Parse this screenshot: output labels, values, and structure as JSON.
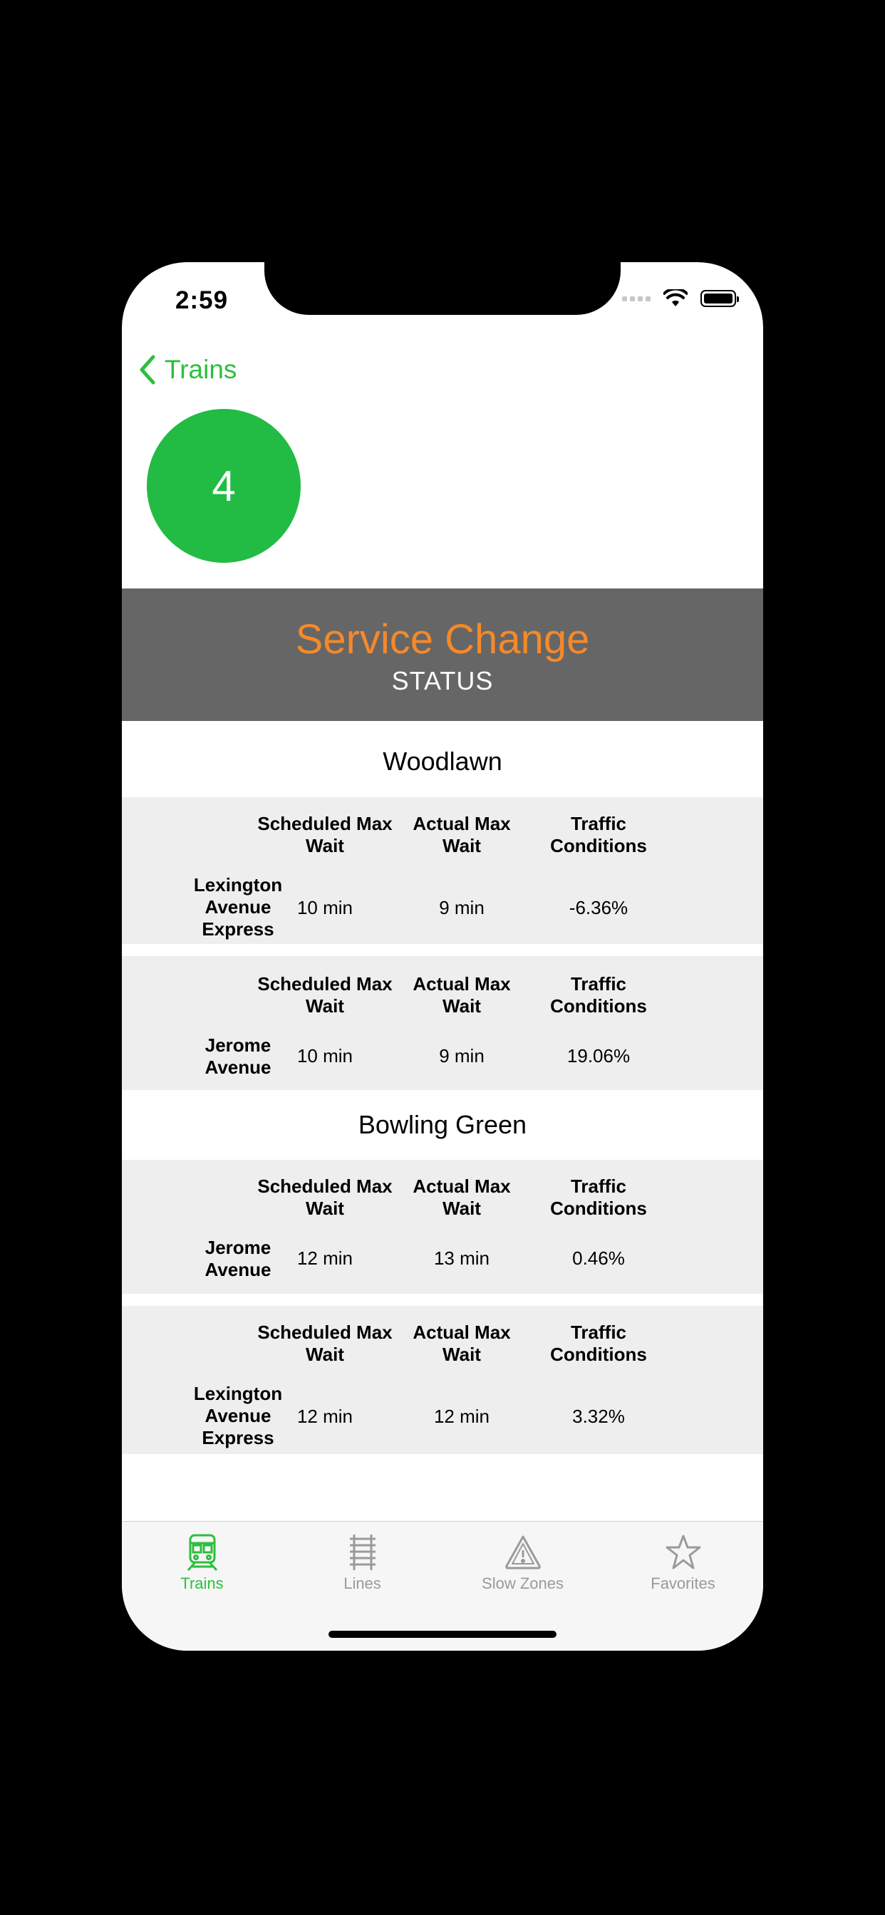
{
  "status_bar": {
    "time": "2:59"
  },
  "nav": {
    "back_label": "Trains"
  },
  "line": {
    "badge": "4",
    "badge_color": "#22bb44"
  },
  "status": {
    "title": "Service Change",
    "subtitle": "STATUS",
    "title_color": "#f5892a"
  },
  "headers": {
    "scheduled": "Scheduled Max Wait",
    "actual": "Actual Max Wait",
    "traffic": "Traffic Conditions"
  },
  "sections": [
    {
      "title": "Woodlawn",
      "rows": [
        {
          "route": "Lexington Avenue Express",
          "scheduled": "10 min",
          "actual": "9 min",
          "traffic": "-6.36%"
        },
        {
          "route": "Jerome Avenue",
          "scheduled": "10 min",
          "actual": "9 min",
          "traffic": "19.06%"
        }
      ]
    },
    {
      "title": "Bowling Green",
      "rows": [
        {
          "route": "Jerome Avenue",
          "scheduled": "12 min",
          "actual": "13 min",
          "traffic": "0.46%"
        },
        {
          "route": "Lexington Avenue Express",
          "scheduled": "12 min",
          "actual": "12 min",
          "traffic": "3.32%"
        }
      ]
    }
  ],
  "tabs": [
    {
      "label": "Trains",
      "icon": "train-icon",
      "active": true
    },
    {
      "label": "Lines",
      "icon": "tracks-icon",
      "active": false
    },
    {
      "label": "Slow Zones",
      "icon": "warning-icon",
      "active": false
    },
    {
      "label": "Favorites",
      "icon": "star-icon",
      "active": false
    }
  ],
  "colors": {
    "accent": "#2dbf3c",
    "banner": "#666666"
  }
}
